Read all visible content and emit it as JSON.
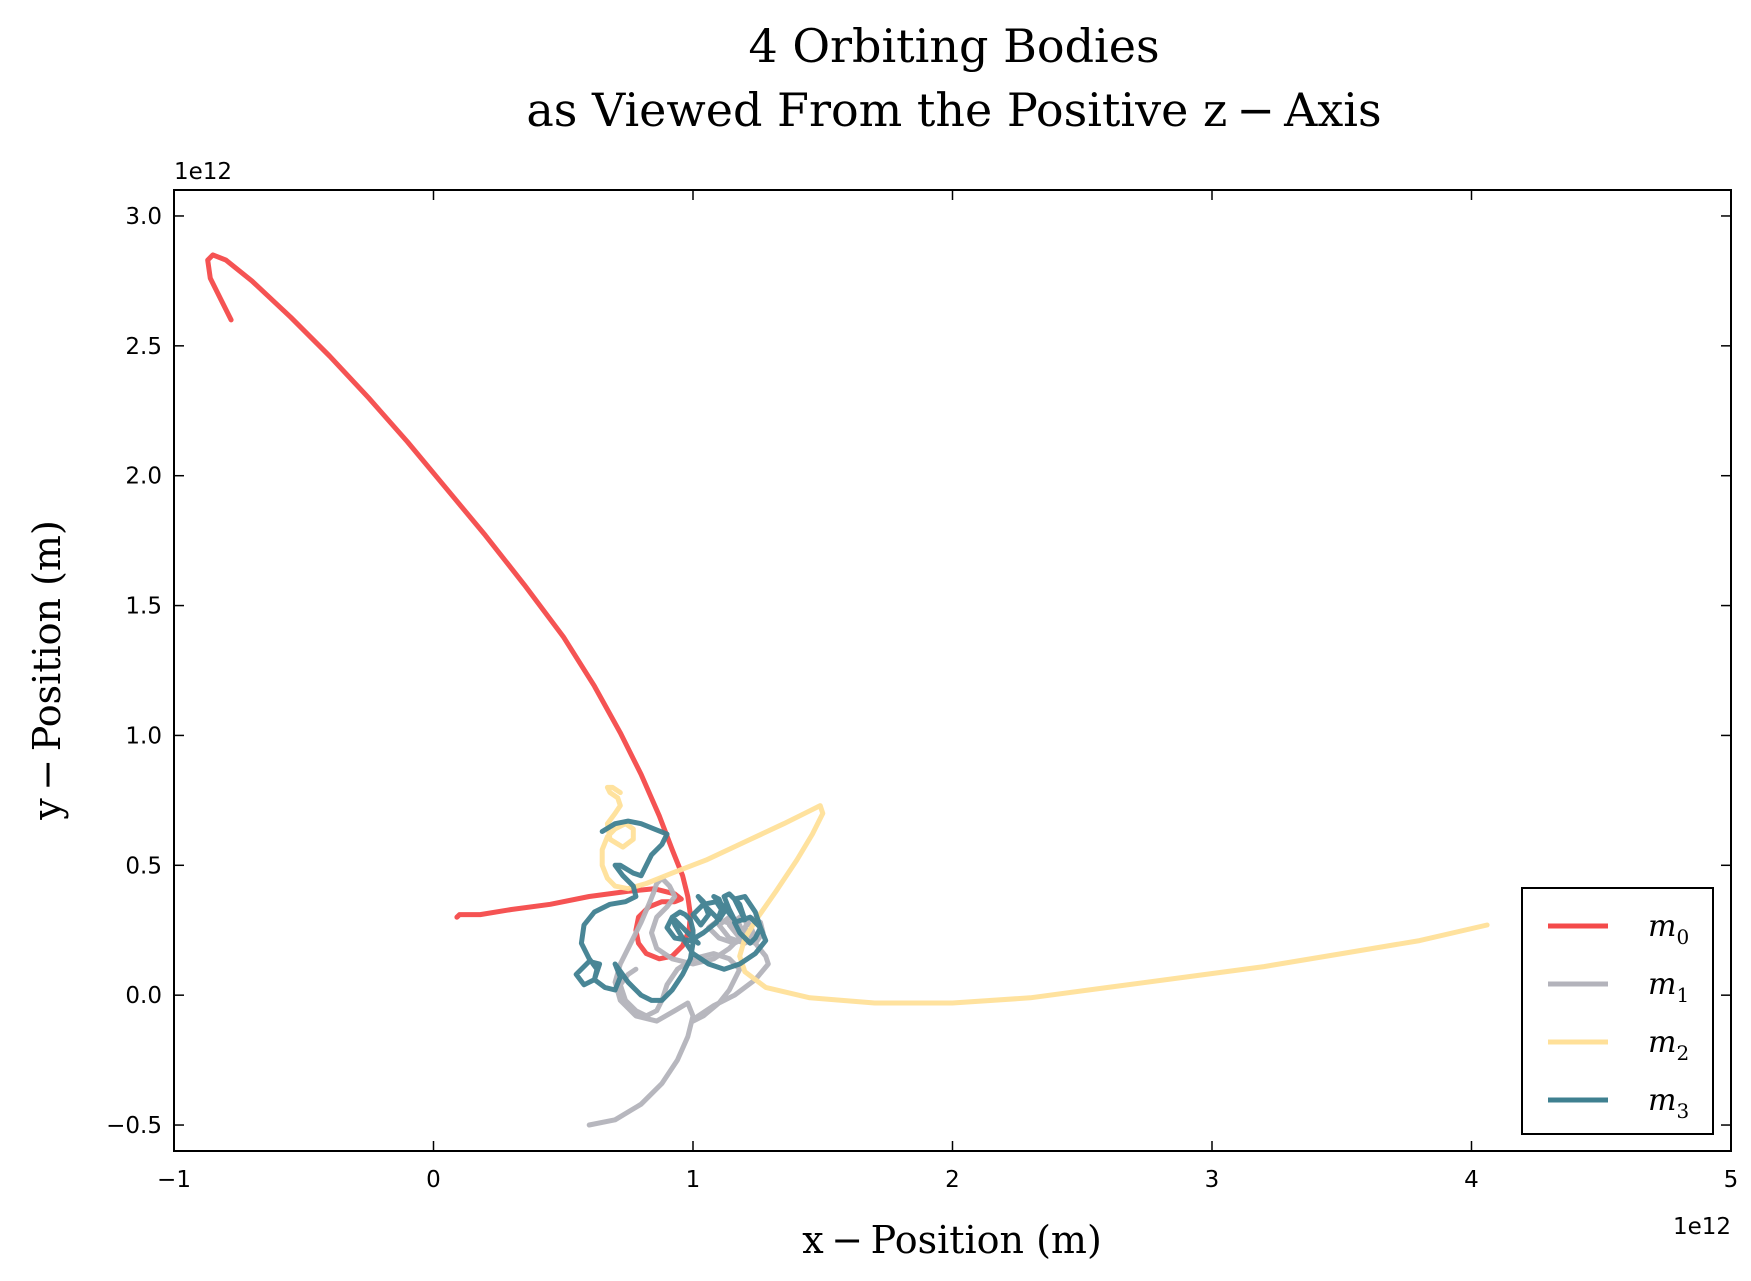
{
  "chart_data": {
    "type": "line",
    "title": "4 Orbiting Bodies",
    "subtitle": "as Viewed From the Positive z − Axis",
    "xlabel": "x − Position (m)",
    "ylabel": "y − Position (m)",
    "x_offset_label": "1e12",
    "y_offset_label": "1e12",
    "xlim": [
      -1,
      5
    ],
    "ylim": [
      -0.6,
      3.1
    ],
    "xticks": [
      -1,
      0,
      1,
      2,
      3,
      4,
      5
    ],
    "xtick_labels": [
      "−1",
      "0",
      "1",
      "2",
      "3",
      "4",
      "5"
    ],
    "yticks": [
      -0.5,
      0.0,
      0.5,
      1.0,
      1.5,
      2.0,
      2.5,
      3.0
    ],
    "ytick_labels": [
      "−0.5",
      "0.0",
      "0.5",
      "1.0",
      "1.5",
      "2.0",
      "2.5",
      "3.0"
    ],
    "grid": false,
    "legend_position": "lower-right",
    "series": [
      {
        "name": "m0",
        "legend_base": "m",
        "legend_sub": "0",
        "color": "#f44a4a",
        "x": [
          -0.78,
          -0.82,
          -0.86,
          -0.87,
          -0.85,
          -0.8,
          -0.7,
          -0.55,
          -0.4,
          -0.25,
          -0.1,
          0.05,
          0.2,
          0.35,
          0.5,
          0.62,
          0.72,
          0.8,
          0.87,
          0.92,
          0.96,
          0.98,
          0.99,
          0.985,
          0.96,
          0.92,
          0.87,
          0.82,
          0.79,
          0.78,
          0.79,
          0.83,
          0.88,
          0.93,
          0.955,
          0.93,
          0.85,
          0.75,
          0.6,
          0.45,
          0.3,
          0.18,
          0.1,
          0.09
        ],
        "y": [
          2.6,
          2.68,
          2.76,
          2.83,
          2.85,
          2.83,
          2.75,
          2.61,
          2.46,
          2.3,
          2.13,
          1.95,
          1.77,
          1.58,
          1.38,
          1.19,
          1.01,
          0.85,
          0.69,
          0.56,
          0.46,
          0.38,
          0.31,
          0.25,
          0.19,
          0.15,
          0.14,
          0.16,
          0.2,
          0.25,
          0.3,
          0.34,
          0.36,
          0.36,
          0.37,
          0.39,
          0.41,
          0.4,
          0.38,
          0.35,
          0.33,
          0.31,
          0.31,
          0.3
        ]
      },
      {
        "name": "m1",
        "legend_base": "m",
        "legend_sub": "1",
        "color": "#b3b3bb",
        "x": [
          0.6,
          0.7,
          0.8,
          0.88,
          0.94,
          0.98,
          1.0,
          0.98,
          0.93,
          0.86,
          0.78,
          0.72,
          0.7,
          0.72,
          0.76,
          0.8,
          0.83,
          0.85,
          0.86,
          0.88,
          0.91,
          0.93,
          0.9,
          0.86,
          0.84,
          0.86,
          0.92,
          1.0,
          1.08,
          1.14,
          1.18,
          1.16,
          1.1,
          1.06,
          1.1,
          1.16,
          1.2,
          1.18,
          1.14,
          1.1,
          1.14,
          1.2,
          1.24,
          1.22,
          1.18,
          1.14,
          1.18,
          1.24,
          1.27,
          1.26,
          1.22,
          1.2,
          1.24,
          1.28,
          1.29,
          1.24,
          1.16,
          1.08,
          1.02,
          1.0,
          1.04,
          1.1,
          1.14,
          1.16,
          1.18,
          1.14,
          1.08,
          1.0,
          0.94,
          0.9,
          0.88,
          0.86,
          0.82,
          0.78,
          0.74,
          0.72,
          0.75,
          0.78
        ],
        "y": [
          -0.5,
          -0.48,
          -0.42,
          -0.34,
          -0.25,
          -0.16,
          -0.08,
          -0.03,
          -0.06,
          -0.1,
          -0.08,
          -0.02,
          0.05,
          0.12,
          0.2,
          0.28,
          0.35,
          0.4,
          0.43,
          0.45,
          0.42,
          0.38,
          0.34,
          0.3,
          0.24,
          0.18,
          0.14,
          0.12,
          0.14,
          0.18,
          0.22,
          0.27,
          0.29,
          0.26,
          0.22,
          0.2,
          0.22,
          0.27,
          0.3,
          0.27,
          0.22,
          0.2,
          0.22,
          0.27,
          0.3,
          0.27,
          0.22,
          0.2,
          0.24,
          0.28,
          0.3,
          0.26,
          0.2,
          0.15,
          0.12,
          0.06,
          0.0,
          -0.04,
          -0.08,
          -0.1,
          -0.08,
          -0.03,
          0.02,
          0.06,
          0.1,
          0.14,
          0.16,
          0.14,
          0.1,
          0.04,
          -0.02,
          -0.06,
          -0.08,
          -0.06,
          -0.02,
          0.04,
          0.08,
          0.1
        ]
      },
      {
        "name": "m2",
        "legend_base": "m",
        "legend_sub": "2",
        "color": "#ffe099",
        "x": [
          4.06,
          3.8,
          3.5,
          3.2,
          2.9,
          2.6,
          2.3,
          2.0,
          1.7,
          1.45,
          1.28,
          1.2,
          1.18,
          1.2,
          1.25,
          1.32,
          1.4,
          1.46,
          1.5,
          1.49,
          1.45,
          1.35,
          1.2,
          1.05,
          0.92,
          0.82,
          0.75,
          0.7,
          0.67,
          0.65,
          0.65,
          0.67,
          0.7,
          0.74,
          0.77,
          0.77,
          0.73,
          0.68,
          0.67,
          0.7,
          0.72,
          0.71,
          0.68,
          0.67,
          0.69,
          0.72
        ],
        "y": [
          0.27,
          0.21,
          0.16,
          0.11,
          0.07,
          0.03,
          -0.01,
          -0.03,
          -0.03,
          -0.01,
          0.03,
          0.09,
          0.15,
          0.22,
          0.3,
          0.4,
          0.52,
          0.62,
          0.7,
          0.73,
          0.71,
          0.66,
          0.59,
          0.52,
          0.47,
          0.43,
          0.41,
          0.42,
          0.45,
          0.5,
          0.56,
          0.61,
          0.64,
          0.66,
          0.64,
          0.6,
          0.57,
          0.6,
          0.66,
          0.7,
          0.73,
          0.76,
          0.78,
          0.8,
          0.8,
          0.78
        ]
      },
      {
        "name": "m3",
        "legend_base": "m",
        "legend_sub": "3",
        "color": "#3f8090",
        "x": [
          0.65,
          0.7,
          0.75,
          0.8,
          0.85,
          0.9,
          0.88,
          0.84,
          0.82,
          0.8,
          0.77,
          0.72,
          0.7,
          0.73,
          0.77,
          0.78,
          0.74,
          0.68,
          0.62,
          0.58,
          0.57,
          0.6,
          0.63,
          0.62,
          0.58,
          0.55,
          0.6,
          0.64,
          0.62,
          0.66,
          0.7,
          0.72,
          0.7,
          0.75,
          0.8,
          0.84,
          0.88,
          0.92,
          0.96,
          0.99,
          1.0,
          1.0,
          0.99,
          0.97,
          0.95,
          0.92,
          0.9,
          0.93,
          0.99,
          1.04,
          1.09,
          1.11,
          1.09,
          1.04,
          1.0,
          1.03,
          1.06,
          1.04,
          1.02,
          1.05,
          1.1,
          1.12,
          1.1,
          1.08,
          1.12,
          1.16,
          1.14,
          1.12,
          1.14,
          1.18,
          1.2,
          1.18,
          1.16,
          1.2,
          1.24,
          1.26,
          1.24,
          1.22,
          1.18,
          1.16,
          1.22,
          1.26,
          1.28,
          1.24,
          1.18,
          1.12,
          1.06,
          1.0,
          0.96,
          0.93,
          0.92,
          0.94,
          0.98,
          1.02
        ],
        "y": [
          0.63,
          0.66,
          0.67,
          0.66,
          0.64,
          0.62,
          0.58,
          0.54,
          0.5,
          0.46,
          0.47,
          0.5,
          0.5,
          0.46,
          0.42,
          0.38,
          0.36,
          0.35,
          0.32,
          0.27,
          0.2,
          0.14,
          0.1,
          0.06,
          0.04,
          0.08,
          0.13,
          0.12,
          0.06,
          0.03,
          0.02,
          0.07,
          0.12,
          0.05,
          0.0,
          -0.02,
          -0.02,
          0.02,
          0.08,
          0.14,
          0.2,
          0.25,
          0.29,
          0.31,
          0.32,
          0.3,
          0.26,
          0.22,
          0.21,
          0.24,
          0.28,
          0.33,
          0.36,
          0.35,
          0.31,
          0.27,
          0.31,
          0.36,
          0.38,
          0.34,
          0.29,
          0.32,
          0.37,
          0.38,
          0.34,
          0.29,
          0.33,
          0.38,
          0.39,
          0.35,
          0.29,
          0.33,
          0.37,
          0.38,
          0.32,
          0.26,
          0.22,
          0.2,
          0.24,
          0.28,
          0.3,
          0.26,
          0.21,
          0.16,
          0.12,
          0.1,
          0.12,
          0.16,
          0.22,
          0.27,
          0.3,
          0.28,
          0.24,
          0.2
        ]
      }
    ]
  }
}
